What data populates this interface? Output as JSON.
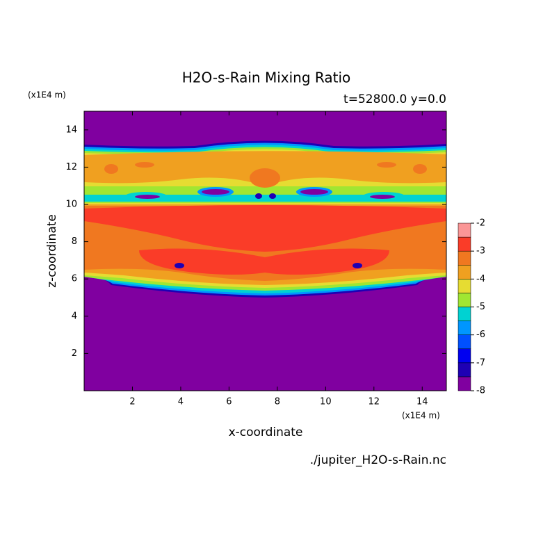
{
  "chart_data": {
    "type": "contour",
    "title": "H2O-s-Rain Mixing Ratio",
    "subtitle": "t=52800.0 y=0.0",
    "x_label": "x-coordinate",
    "y_label": "z-coordinate",
    "x_unit": "(x1E4 m)",
    "y_unit": "(x1E4 m)",
    "source": "./jupiter_H2O-s-Rain.nc",
    "xlim": [
      0,
      15
    ],
    "xticks": [
      2,
      4,
      6,
      8,
      10,
      12,
      14
    ],
    "ylim": [
      0,
      15
    ],
    "yticks": [
      2,
      4,
      6,
      8,
      10,
      12,
      14
    ],
    "levels": [
      -8,
      -7.5,
      -7,
      -6.5,
      -6,
      -5.5,
      -5,
      -4.5,
      -4,
      -3.5,
      -3,
      -2.5,
      -2
    ],
    "colorbar_ticks": [
      -8,
      -7,
      -6,
      -5,
      -4,
      -3,
      -2
    ],
    "colors": [
      "#8000a0",
      "#1e00b4",
      "#0000f0",
      "#0050ff",
      "#0096ff",
      "#00d2d2",
      "#a0e632",
      "#e6dc32",
      "#f0a020",
      "#f07820",
      "#fa3c28",
      "#fb9696"
    ]
  }
}
